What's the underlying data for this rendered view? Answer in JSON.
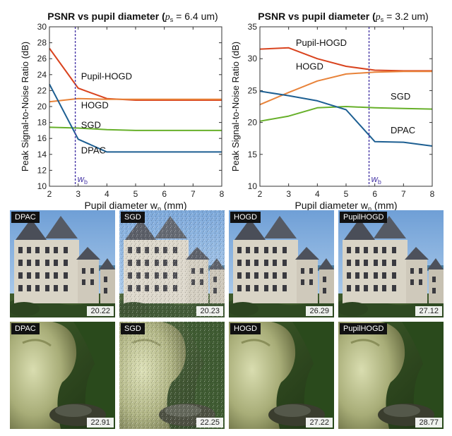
{
  "chart_data": [
    {
      "type": "line",
      "title": "PSNR vs pupil diameter (",
      "title_sub": "p",
      "title_subscript": "s",
      "title_tail": " = 6.4 um)",
      "xlabel": "Pupil diameter w",
      "xlabel_sub": "p",
      "xlabel_unit": " (mm)",
      "ylabel": "Peak Signal-to-Noise Ratio (dB)",
      "xlim": [
        2,
        8
      ],
      "ylim": [
        10,
        30
      ],
      "xticks": [
        2,
        3,
        4,
        5,
        6,
        7,
        8
      ],
      "yticks": [
        10,
        12,
        14,
        16,
        18,
        20,
        22,
        24,
        26,
        28,
        30
      ],
      "marker_line": {
        "x": 2.9,
        "label": "w",
        "label_sub": "b",
        "color": "#4a3aa8"
      },
      "series": [
        {
          "name": "Pupil-HOGD",
          "color": "#d9431e",
          "x": [
            2,
            3,
            4,
            5,
            6,
            7,
            8
          ],
          "y": [
            27.3,
            22.3,
            21.0,
            20.8,
            20.8,
            20.8,
            20.8
          ],
          "label_at": [
            3.1,
            23.4
          ]
        },
        {
          "name": "HOGD",
          "color": "#e8833a",
          "x": [
            2,
            3,
            4,
            5,
            6,
            7,
            8
          ],
          "y": [
            20.6,
            21.0,
            20.9,
            20.9,
            20.9,
            20.9,
            20.9
          ],
          "label_at": [
            3.1,
            19.8
          ]
        },
        {
          "name": "SGD",
          "color": "#67b02a",
          "x": [
            2,
            3,
            4,
            5,
            6,
            7,
            8
          ],
          "y": [
            17.4,
            17.3,
            17.1,
            17.0,
            17.0,
            17.0,
            17.0
          ],
          "label_at": [
            3.1,
            17.3
          ]
        },
        {
          "name": "DPAC",
          "color": "#1d5f92",
          "x": [
            2,
            3,
            4,
            5,
            6,
            7,
            8
          ],
          "y": [
            22.8,
            15.9,
            14.3,
            14.3,
            14.3,
            14.3,
            14.3
          ],
          "label_at": [
            3.1,
            14.1
          ]
        }
      ]
    },
    {
      "type": "line",
      "title": "PSNR vs pupil diameter (",
      "title_sub": "p",
      "title_subscript": "s",
      "title_tail": " = 3.2 um)",
      "xlabel": "Pupil diameter w",
      "xlabel_sub": "p",
      "xlabel_unit": " (mm)",
      "ylabel": "Peak Signal-to-Noise Ratio (dB)",
      "xlim": [
        2,
        8
      ],
      "ylim": [
        10,
        35
      ],
      "xticks": [
        2,
        3,
        4,
        5,
        6,
        7,
        8
      ],
      "yticks": [
        10,
        15,
        20,
        25,
        30,
        35
      ],
      "marker_line": {
        "x": 5.8,
        "label": "w",
        "label_sub": "b",
        "color": "#4a3aa8"
      },
      "series": [
        {
          "name": "Pupil-HOGD",
          "color": "#d9431e",
          "x": [
            2,
            3,
            4,
            5,
            6,
            7,
            8
          ],
          "y": [
            31.5,
            31.7,
            30.0,
            28.8,
            28.2,
            28.1,
            28.1
          ],
          "label_at": [
            3.25,
            32.0
          ]
        },
        {
          "name": "HOGD",
          "color": "#e8833a",
          "x": [
            2,
            3,
            4,
            5,
            6,
            7,
            8
          ],
          "y": [
            22.8,
            24.7,
            26.5,
            27.6,
            27.9,
            28.0,
            28.0
          ],
          "label_at": [
            3.25,
            28.3
          ]
        },
        {
          "name": "SGD",
          "color": "#67b02a",
          "x": [
            2,
            3,
            4,
            5,
            6,
            7,
            8
          ],
          "y": [
            20.2,
            21.0,
            22.3,
            22.5,
            22.3,
            22.2,
            22.1
          ],
          "label_at": [
            6.55,
            23.6
          ]
        },
        {
          "name": "DPAC",
          "color": "#1d5f92",
          "x": [
            2,
            3,
            4,
            5,
            6,
            7,
            8
          ],
          "y": [
            24.9,
            24.2,
            23.4,
            22.0,
            17.0,
            16.9,
            16.3
          ],
          "label_at": [
            6.55,
            18.3
          ]
        }
      ]
    }
  ],
  "comparison": {
    "rows": [
      {
        "scene": "castle",
        "tiles": [
          {
            "method": "DPAC",
            "psnr": "20.22"
          },
          {
            "method": "SGD",
            "psnr": "20.23"
          },
          {
            "method": "HOGD",
            "psnr": "26.29"
          },
          {
            "method": "PupilHOGD",
            "psnr": "27.12"
          }
        ]
      },
      {
        "scene": "creature",
        "tiles": [
          {
            "method": "DPAC",
            "psnr": "22.91"
          },
          {
            "method": "SGD",
            "psnr": "22.25"
          },
          {
            "method": "HOGD",
            "psnr": "27.22"
          },
          {
            "method": "PupilHOGD",
            "psnr": "28.77"
          }
        ]
      }
    ]
  }
}
